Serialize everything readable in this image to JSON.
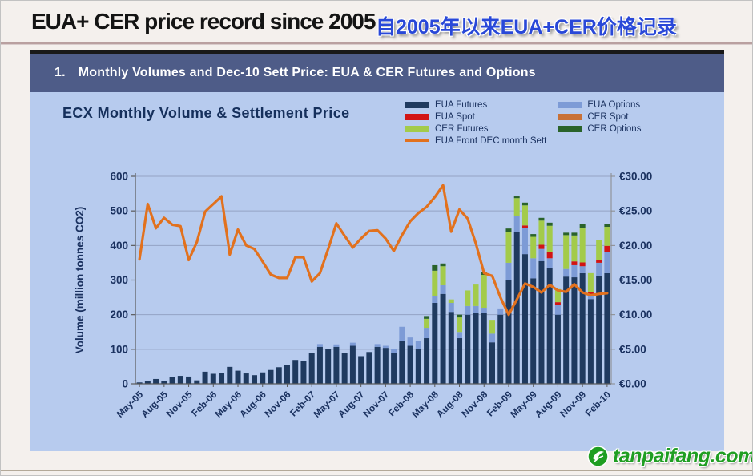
{
  "page": {
    "title_en": "EUA+ CER price record since 2005",
    "title_zh": "自2005年以来EUA+CER价格记录",
    "logo_text": "tanpaifang.com",
    "logo_icon": "green-leaf-circle"
  },
  "section": {
    "number": "1.",
    "heading": "Monthly Volumes and Dec-10 Sett Price: EUA & CER Futures and Options"
  },
  "chart_data": {
    "type": "bar",
    "subtype": "stacked-bar-with-line",
    "title": "ECX Monthly Volume & Settlement Price",
    "grid": true,
    "x_categories": [
      "May-05",
      "Jun-05",
      "Jul-05",
      "Aug-05",
      "Sep-05",
      "Oct-05",
      "Nov-05",
      "Dec-05",
      "Jan-06",
      "Feb-06",
      "Mar-06",
      "Apr-06",
      "May-06",
      "Jun-06",
      "Jul-06",
      "Aug-06",
      "Sep-06",
      "Oct-06",
      "Nov-06",
      "Dec-06",
      "Jan-07",
      "Feb-07",
      "Mar-07",
      "Apr-07",
      "May-07",
      "Jun-07",
      "Jul-07",
      "Aug-07",
      "Sep-07",
      "Oct-07",
      "Nov-07",
      "Dec-07",
      "Jan-08",
      "Feb-08",
      "Mar-08",
      "Apr-08",
      "May-08",
      "Jun-08",
      "Jul-08",
      "Aug-08",
      "Sep-08",
      "Oct-08",
      "Nov-08",
      "Dec-08",
      "Jan-09",
      "Feb-09",
      "Mar-09",
      "Apr-09",
      "May-09",
      "Jun-09",
      "Jul-09",
      "Aug-09",
      "Sep-09",
      "Oct-09",
      "Nov-09",
      "Dec-09",
      "Jan-10",
      "Feb-10"
    ],
    "x_tick_labels": [
      "May-05",
      "Aug-05",
      "Nov-05",
      "Feb-06",
      "May-06",
      "Aug-06",
      "Nov-06",
      "Feb-07",
      "May-07",
      "Aug-07",
      "Nov-07",
      "Feb-08",
      "May-08",
      "Aug-08",
      "Nov-08",
      "Feb-09",
      "May-09",
      "Aug-09",
      "Nov-09",
      "Feb-10"
    ],
    "x_label_every": 3,
    "y_left": {
      "label": "Volume (million tonnes CO2)",
      "min": 0,
      "max": 600,
      "step": 100,
      "ticks": [
        "0",
        "100",
        "200",
        "300",
        "400",
        "500",
        "600"
      ]
    },
    "y_right": {
      "min": 0,
      "max": 30,
      "step": 5,
      "ticks": [
        "€0.00",
        "€5.00",
        "€10.00",
        "€15.00",
        "€20.00",
        "€25.00",
        "€30.00"
      ]
    },
    "series": [
      {
        "name": "EUA Futures",
        "color": "#1f3a5f",
        "values": [
          4,
          9,
          14,
          8,
          19,
          23,
          21,
          10,
          35,
          29,
          32,
          49,
          38,
          30,
          25,
          33,
          40,
          48,
          55,
          69,
          65,
          90,
          107,
          100,
          107,
          88,
          110,
          80,
          92,
          107,
          104,
          90,
          123,
          110,
          100,
          132,
          234,
          260,
          208,
          132,
          200,
          205,
          205,
          120,
          200,
          300,
          440,
          375,
          305,
          355,
          335,
          200,
          310,
          308,
          320,
          245,
          312,
          320
        ]
      },
      {
        "name": "EUA Options",
        "color": "#7d9bd6",
        "values": [
          0,
          0,
          0,
          0,
          0,
          0,
          0,
          0,
          0,
          0,
          0,
          0,
          0,
          0,
          0,
          0,
          0,
          0,
          0,
          0,
          0,
          0,
          8,
          0,
          7,
          0,
          9,
          0,
          0,
          8,
          6,
          10,
          42,
          24,
          23,
          30,
          20,
          25,
          26,
          18,
          25,
          20,
          15,
          25,
          18,
          50,
          45,
          75,
          58,
          35,
          28,
          28,
          22,
          35,
          20,
          12,
          38,
          60
        ]
      },
      {
        "name": "EUA Spot",
        "color": "#d21414",
        "values": [
          0,
          0,
          0,
          0,
          0,
          0,
          0,
          0,
          0,
          0,
          0,
          0,
          0,
          0,
          0,
          0,
          0,
          0,
          0,
          0,
          0,
          0,
          0,
          0,
          0,
          0,
          0,
          0,
          0,
          0,
          0,
          0,
          0,
          0,
          0,
          0,
          0,
          0,
          0,
          0,
          0,
          0,
          0,
          0,
          0,
          0,
          0,
          8,
          0,
          12,
          19,
          8,
          0,
          11,
          11,
          8,
          8,
          19
        ]
      },
      {
        "name": "CER Futures",
        "color": "#a3cb4a",
        "values": [
          0,
          0,
          0,
          0,
          0,
          0,
          0,
          0,
          0,
          0,
          0,
          0,
          0,
          0,
          0,
          0,
          0,
          0,
          0,
          0,
          0,
          0,
          0,
          0,
          0,
          0,
          0,
          0,
          0,
          0,
          0,
          0,
          0,
          0,
          0,
          26,
          73,
          55,
          10,
          42,
          45,
          62,
          95,
          40,
          0,
          90,
          52,
          58,
          62,
          70,
          75,
          38,
          98,
          75,
          100,
          55,
          58,
          55
        ]
      },
      {
        "name": "CER Spot",
        "color": "#c87137",
        "values": [
          0,
          0,
          0,
          0,
          0,
          0,
          0,
          0,
          0,
          0,
          0,
          0,
          0,
          0,
          0,
          0,
          0,
          0,
          0,
          0,
          0,
          0,
          0,
          0,
          0,
          0,
          0,
          0,
          0,
          0,
          0,
          0,
          0,
          0,
          0,
          0,
          0,
          0,
          0,
          0,
          0,
          0,
          0,
          0,
          0,
          0,
          0,
          0,
          0,
          0,
          0,
          0,
          0,
          0,
          0,
          0,
          0,
          0
        ]
      },
      {
        "name": "CER Options",
        "color": "#2a632a",
        "values": [
          0,
          0,
          0,
          0,
          0,
          0,
          0,
          0,
          0,
          0,
          0,
          0,
          0,
          0,
          0,
          0,
          0,
          0,
          0,
          0,
          0,
          0,
          0,
          0,
          0,
          0,
          0,
          0,
          0,
          0,
          0,
          0,
          0,
          0,
          0,
          8,
          16,
          8,
          0,
          8,
          0,
          0,
          8,
          0,
          0,
          9,
          5,
          8,
          8,
          8,
          9,
          0,
          7,
          8,
          10,
          0,
          0,
          8
        ]
      }
    ],
    "line_series": {
      "name": "EUA Front DEC month Sett",
      "color": "#e2711d",
      "axis": "right",
      "values": [
        18.0,
        26.0,
        22.5,
        24.0,
        23.0,
        22.8,
        17.9,
        20.5,
        24.9,
        26.0,
        27.1,
        18.7,
        22.3,
        20.0,
        19.5,
        17.7,
        15.8,
        15.3,
        15.3,
        18.3,
        18.3,
        14.8,
        16.0,
        19.5,
        23.2,
        21.4,
        19.7,
        21.0,
        22.1,
        22.2,
        21.0,
        19.2,
        21.5,
        23.5,
        24.7,
        25.6,
        27.0,
        28.7,
        22.0,
        25.2,
        23.9,
        20.3,
        16.0,
        15.6,
        12.5,
        10.0,
        12.2,
        14.5,
        14.0,
        13.2,
        14.3,
        13.5,
        13.3,
        14.4,
        13.2,
        12.8,
        13.0,
        13.1
      ]
    },
    "legend": {
      "position": "top-right",
      "column1": [
        "EUA Futures",
        "EUA Spot",
        "CER Futures",
        "EUA Front DEC month Sett"
      ],
      "column2": [
        "EUA Options",
        "CER Spot",
        "CER Options"
      ]
    },
    "colors": {
      "panel_background": "#b7cbee",
      "header_bar": "#4e5c88",
      "gridline": "#94a3c4",
      "axis_text": "#1b3260"
    }
  }
}
